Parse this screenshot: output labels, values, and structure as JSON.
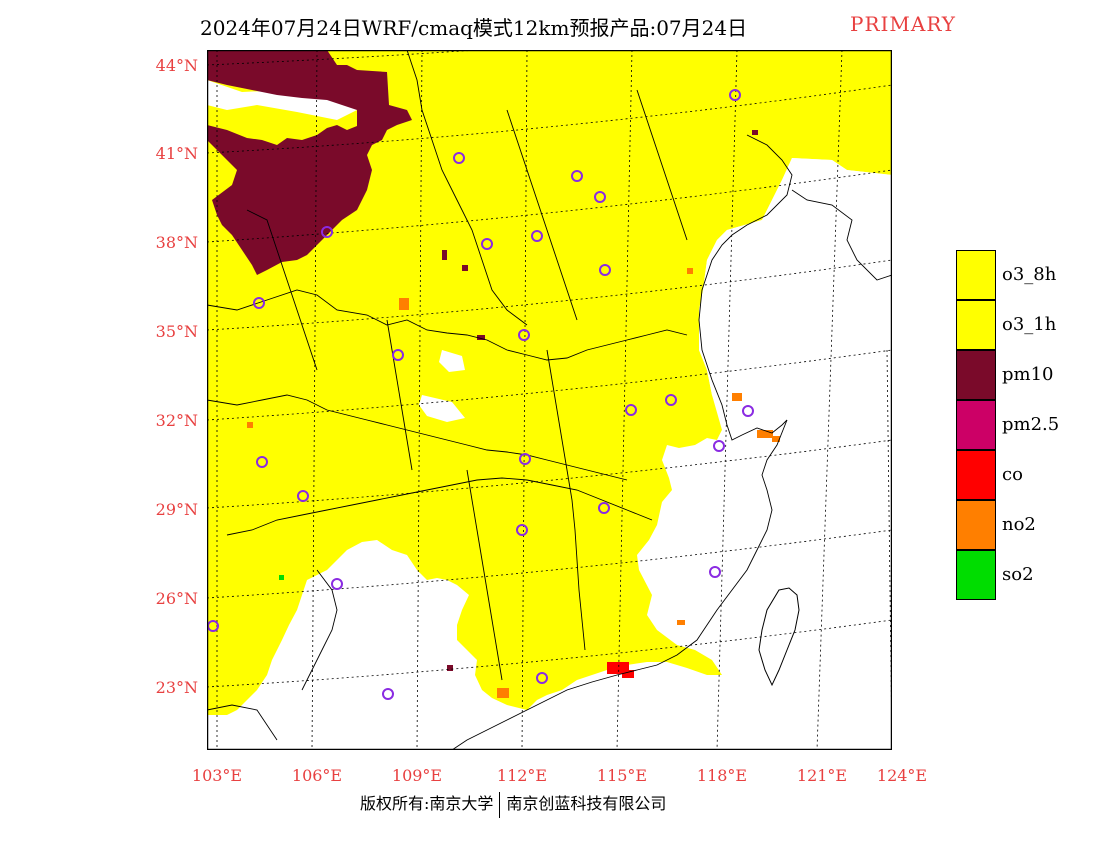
{
  "title": "2024年07月24日WRF/cmaq模式12km预报产品:07月24日",
  "tag": "PRIMARY",
  "lat_labels": [
    "44°N",
    "41°N",
    "38°N",
    "35°N",
    "32°N",
    "29°N",
    "26°N",
    "23°N"
  ],
  "lon_labels": [
    "103°E",
    "106°E",
    "109°E",
    "112°E",
    "115°E",
    "118°E",
    "121°E",
    "124°E"
  ],
  "legend": [
    {
      "label": "o3_8h",
      "color": "#ffff00"
    },
    {
      "label": "o3_1h",
      "color": "#ffff00"
    },
    {
      "label": "pm10",
      "color": "#7a0a2a"
    },
    {
      "label": "pm2.5",
      "color": "#cc0066"
    },
    {
      "label": "co",
      "color": "#ff0000"
    },
    {
      "label": "no2",
      "color": "#ff7f00"
    },
    {
      "label": "so2",
      "color": "#00dd00"
    }
  ],
  "footer": {
    "left": "版权所有:南京大学",
    "right": "南京创蓝科技有限公司"
  },
  "colors": {
    "axis_label": "#e84040",
    "o3": "#ffff00",
    "pm10": "#7a0a2a",
    "no2": "#ff7f00",
    "co": "#ff0000",
    "so2": "#00dd00",
    "city_marker": "#8a2be2"
  },
  "map_extent": {
    "lon_min": 103,
    "lon_max": 124,
    "lat_min": 23,
    "lat_max": 44
  }
}
